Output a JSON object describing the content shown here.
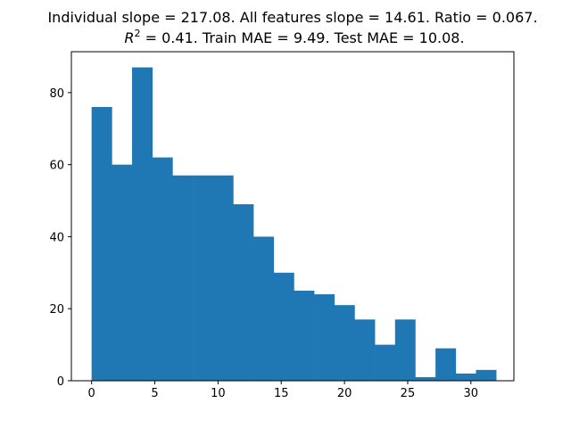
{
  "chart_data": {
    "type": "bar",
    "title_line1": "Individual slope = 217.08. All features slope = 14.61. Ratio = 0.067.",
    "title_line2_prefix": "R",
    "title_line2_sup": "2",
    "title_line2_rest": " = 0.41. Train MAE = 9.49. Test MAE = 10.08.",
    "xlabel": "",
    "ylabel": "",
    "xlim": [
      -1.6,
      33.4
    ],
    "ylim": [
      0,
      91.35
    ],
    "xticks": [
      0,
      5,
      10,
      15,
      20,
      25,
      30
    ],
    "yticks": [
      0,
      20,
      40,
      60,
      80
    ],
    "bar_color": "#1f77b4",
    "bins": [
      {
        "x0": 0.0,
        "x1": 1.6,
        "count": 76
      },
      {
        "x0": 1.6,
        "x1": 3.2,
        "count": 60
      },
      {
        "x0": 3.2,
        "x1": 4.8,
        "count": 87
      },
      {
        "x0": 4.8,
        "x1": 6.4,
        "count": 62
      },
      {
        "x0": 6.4,
        "x1": 8.0,
        "count": 57
      },
      {
        "x0": 8.0,
        "x1": 9.6,
        "count": 57
      },
      {
        "x0": 9.6,
        "x1": 11.2,
        "count": 57
      },
      {
        "x0": 11.2,
        "x1": 12.8,
        "count": 49
      },
      {
        "x0": 12.8,
        "x1": 14.4,
        "count": 40
      },
      {
        "x0": 14.4,
        "x1": 16.0,
        "count": 30
      },
      {
        "x0": 16.0,
        "x1": 17.6,
        "count": 25
      },
      {
        "x0": 17.6,
        "x1": 19.2,
        "count": 24
      },
      {
        "x0": 19.2,
        "x1": 20.8,
        "count": 21
      },
      {
        "x0": 20.8,
        "x1": 22.4,
        "count": 17
      },
      {
        "x0": 22.4,
        "x1": 24.0,
        "count": 10
      },
      {
        "x0": 24.0,
        "x1": 25.6,
        "count": 17
      },
      {
        "x0": 25.6,
        "x1": 27.2,
        "count": 1
      },
      {
        "x0": 27.2,
        "x1": 28.8,
        "count": 9
      },
      {
        "x0": 28.8,
        "x1": 30.4,
        "count": 2
      },
      {
        "x0": 30.4,
        "x1": 32.0,
        "count": 3
      }
    ]
  }
}
